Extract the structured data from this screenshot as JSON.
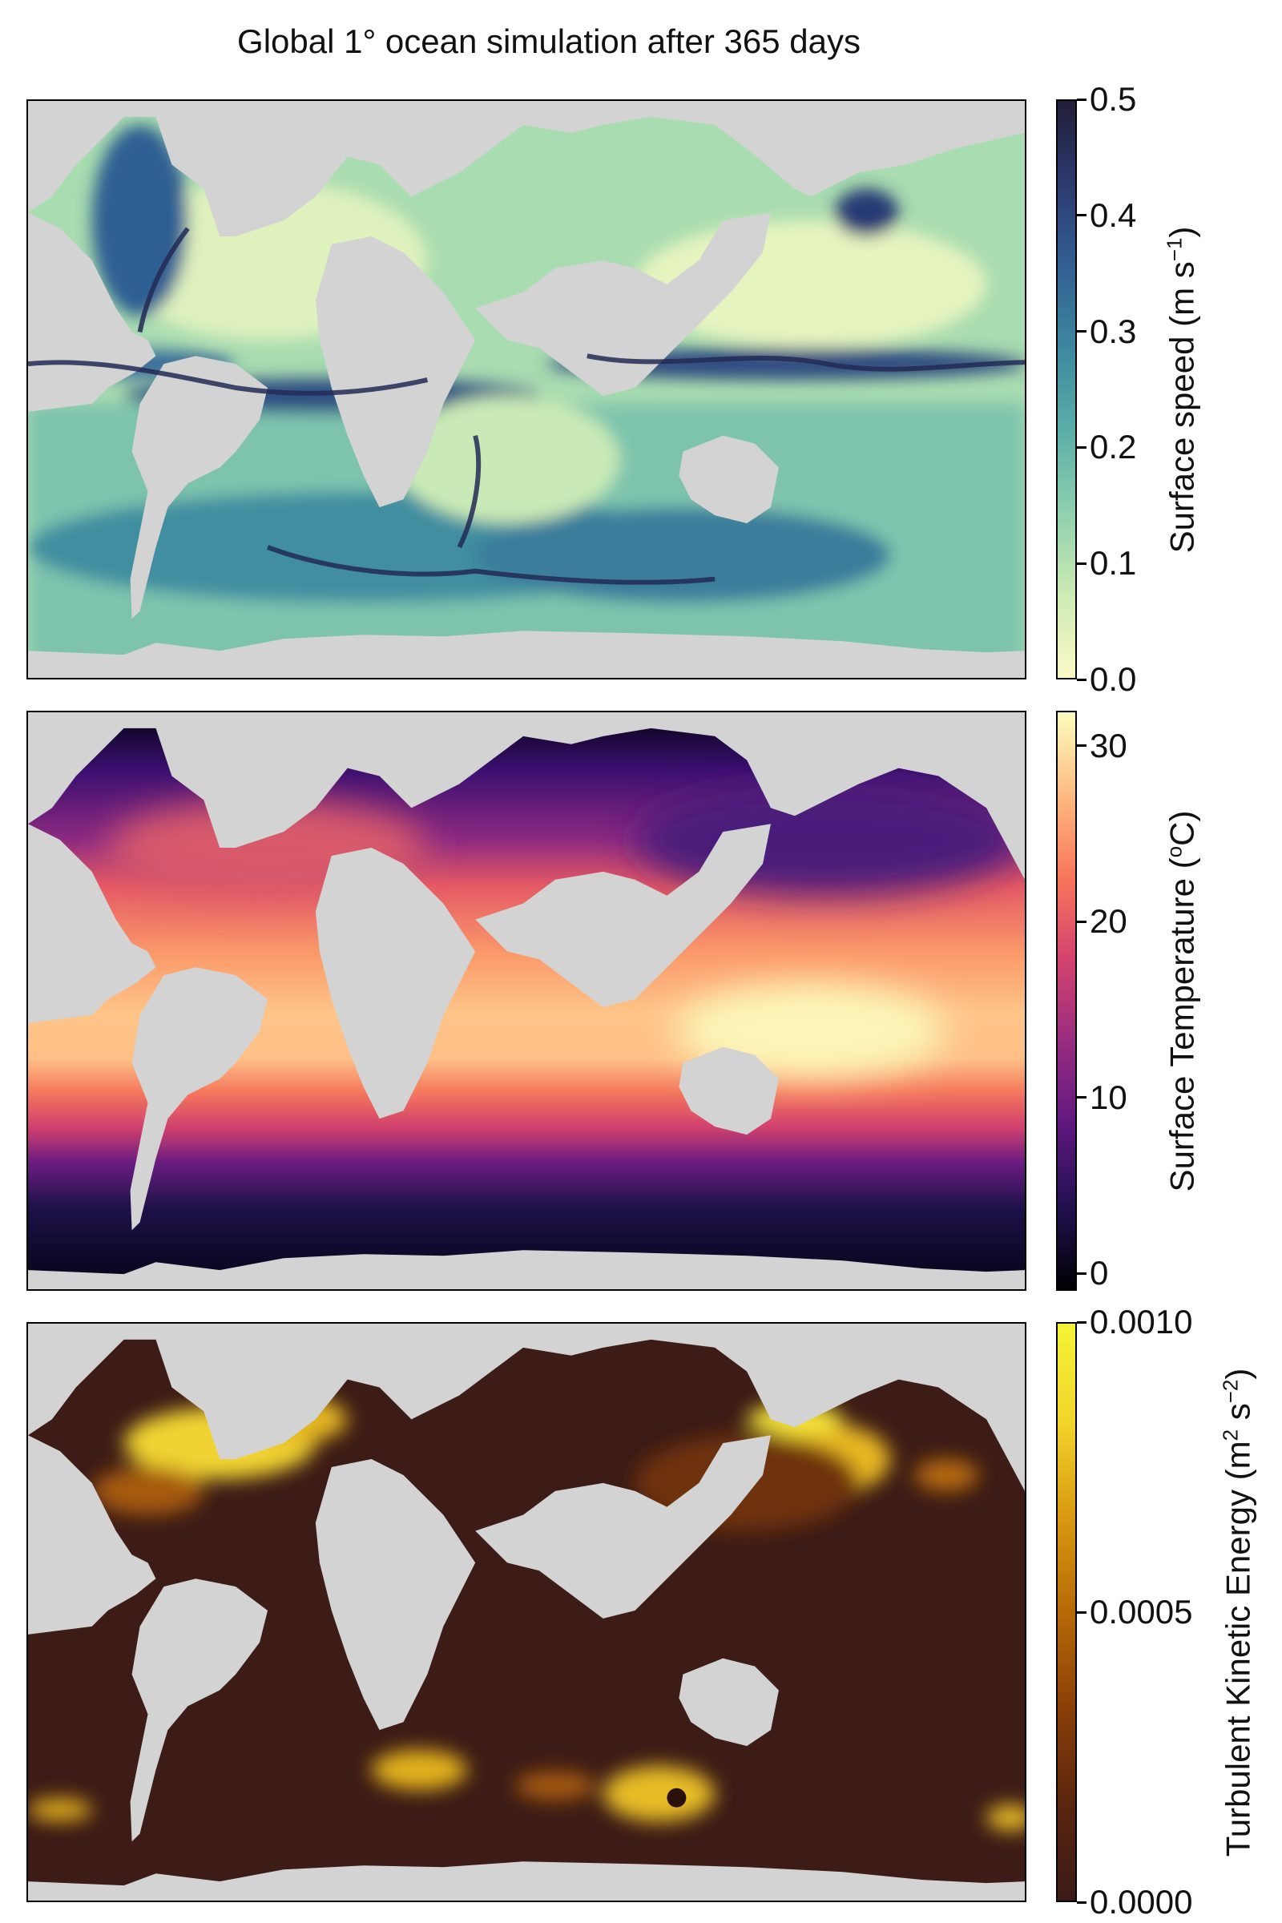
{
  "figure": {
    "title": "Global 1° ocean simulation after 365 days"
  },
  "chart_data": [
    {
      "type": "heatmap",
      "map": "global ocean surface speed",
      "colorbar": {
        "label_main": "Surface speed (m s",
        "label_sup": "−1",
        "label_end": ")",
        "range": [
          0.0,
          0.5
        ],
        "ticks": [
          "0.0",
          "0.1",
          "0.2",
          "0.3",
          "0.4",
          "0.5"
        ],
        "colormap": [
          "#fbf8c7",
          "#cdebb4",
          "#8fd0ae",
          "#5aaea8",
          "#3d889e",
          "#335f92",
          "#2b3a6e",
          "#221e38"
        ]
      },
      "land_color": "#d3d3d3"
    },
    {
      "type": "heatmap",
      "map": "global sea surface temperature",
      "colorbar": {
        "label_main": "Surface Temperature (",
        "label_sup": "o",
        "label_end": "C)",
        "range": [
          -1,
          32
        ],
        "ticks": [
          "0",
          "10",
          "20",
          "30"
        ],
        "colormap": [
          "#000004",
          "#221150",
          "#5f187f",
          "#982d80",
          "#d3436e",
          "#f8765c",
          "#febb81",
          "#fcfdbf"
        ]
      },
      "land_color": "#d3d3d3"
    },
    {
      "type": "heatmap",
      "map": "global turbulent kinetic energy",
      "colorbar": {
        "label_main": "Turbulent Kinetic Energy (m",
        "label_sup": "2",
        "label_mid": " s",
        "label_sup2": "−2",
        "label_end": ")",
        "range": [
          0.0,
          0.001
        ],
        "ticks": [
          "0.0000",
          "0.0005",
          "0.0010"
        ],
        "colormap": [
          "#3b1a17",
          "#5a260f",
          "#8a3f07",
          "#b66a07",
          "#d99a12",
          "#f2d62b",
          "#f4f336"
        ]
      },
      "land_color": "#d3d3d3"
    }
  ]
}
